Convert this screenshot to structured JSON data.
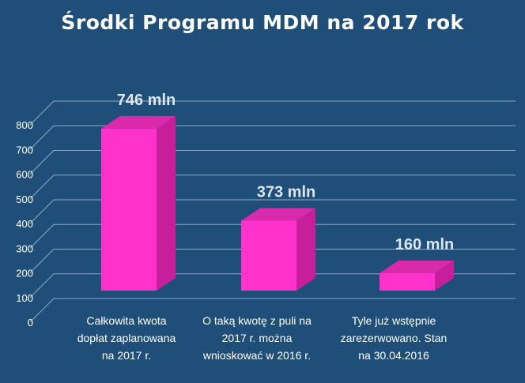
{
  "chart_data": {
    "type": "bar",
    "title": "Środki Programu MDM na 2017 rok",
    "categories": [
      "Całkowita kwota dopłat zaplanowana na 2017 r.",
      "O taką kwotę z puli na 2017 r. można wnioskować w 2016 r.",
      "Tyle już wstępnie zarezerwowano. Stan na 30.04.2016"
    ],
    "category_lines": [
      [
        "Całkowita kwota",
        "dopłat zaplanowana",
        "na 2017 r."
      ],
      [
        "O taką kwotę z puli na",
        "2017 r. można",
        "wnioskować w 2016 r."
      ],
      [
        "Tyle już wstępnie",
        "zarezerwowano. Stan",
        "na 30.04.2016"
      ]
    ],
    "values": [
      746,
      373,
      160
    ],
    "data_labels": [
      "746 mln",
      "373 mln",
      "160 mln"
    ],
    "yticks": [
      "0",
      "100",
      "200",
      "300",
      "400",
      "500",
      "600",
      "700",
      "800"
    ],
    "ylim": [
      0,
      800
    ],
    "grid": true,
    "legend": "none",
    "colors": {
      "background": "#1f4e79",
      "bar_front": "#ff33cc",
      "bar_side": "#c71f9b",
      "bar_top": "#d92aac",
      "grid": "#8ea9c8",
      "text": "#ffffff",
      "data_label": "#dce6f2"
    }
  }
}
